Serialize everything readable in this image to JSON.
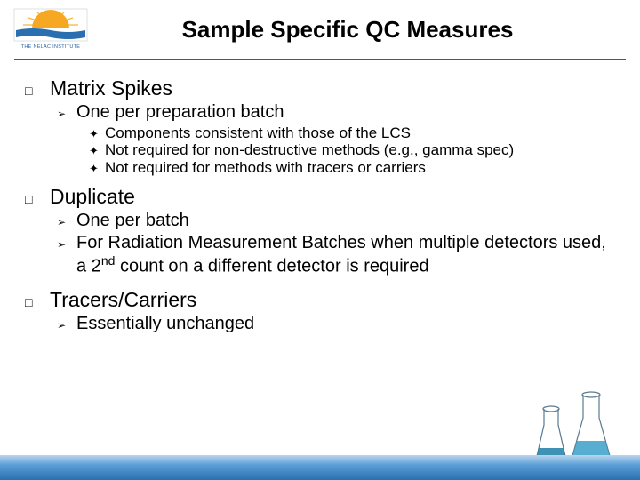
{
  "logo": {
    "top_text": "THE NELAC INSTITUTE",
    "sun_color": "#f7a823",
    "ray_color": "#f7b733",
    "water_color": "#2a6fb0",
    "text_color": "#2a5f9e"
  },
  "title": "Sample Specific QC Measures",
  "title_color": "#000000",
  "hr_color": "#2a5f9e",
  "bullets": {
    "l1_glyph": "□",
    "l2_glyph": "➢",
    "l3_glyph": "✦"
  },
  "sections": [
    {
      "heading": "Matrix Spikes",
      "sub": [
        {
          "text": "One per preparation batch",
          "items": [
            {
              "text": "Components consistent with those of the LCS",
              "underline": false
            },
            {
              "text": "Not required for non-destructive methods (e.g., gamma spec)",
              "underline": true
            },
            {
              "text": "Not required for methods with tracers or carriers",
              "underline": false
            }
          ]
        }
      ]
    },
    {
      "heading": "Duplicate",
      "sub": [
        {
          "text": "One per batch"
        },
        {
          "html": "For Radiation Measurement Batches when multiple detectors used, a 2<span class=\"super\">nd</span> count on a different detector is required"
        }
      ]
    },
    {
      "heading": "Tracers/Carriers",
      "sub": [
        {
          "text": "Essentially unchanged"
        }
      ]
    }
  ],
  "footer": {
    "gradient_top": "#b9d6ed",
    "gradient_mid": "#5a9fd6",
    "gradient_bottom": "#2a6fb0"
  },
  "beakers": {
    "glass_stroke": "#5a7a90",
    "liquid1": "#3aa0c8",
    "liquid2": "#1f7fa8"
  },
  "font_sizes": {
    "title": 26,
    "l1": 23,
    "l2": 20,
    "l3": 17
  }
}
